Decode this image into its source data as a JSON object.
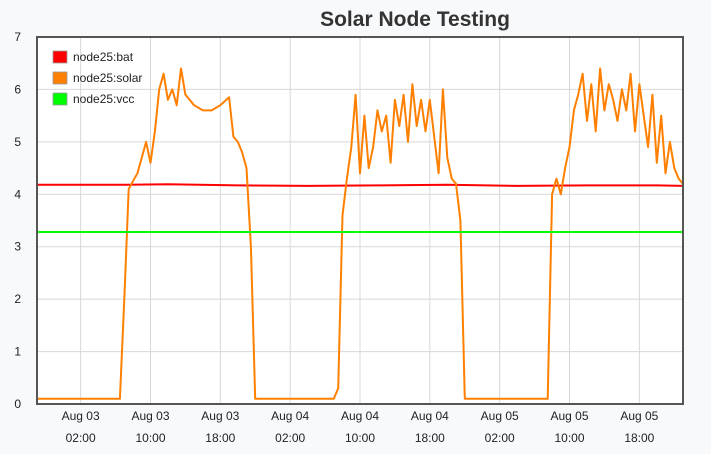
{
  "chart_data": {
    "type": "line",
    "title": "Solar Node Testing",
    "xlabel": "",
    "ylabel": "",
    "ylim": [
      0,
      7
    ],
    "yticks": [
      0,
      1,
      2,
      3,
      4,
      5,
      6,
      7
    ],
    "xlim": [
      "2023-08-02T21:00",
      "2023-08-05T23:00"
    ],
    "xticks": [
      {
        "t": "2023-08-03T02:00",
        "date": "Aug 03",
        "time": "02:00"
      },
      {
        "t": "2023-08-03T10:00",
        "date": "Aug 03",
        "time": "10:00"
      },
      {
        "t": "2023-08-03T18:00",
        "date": "Aug 03",
        "time": "18:00"
      },
      {
        "t": "2023-08-04T02:00",
        "date": "Aug 04",
        "time": "02:00"
      },
      {
        "t": "2023-08-04T10:00",
        "date": "Aug 04",
        "time": "10:00"
      },
      {
        "t": "2023-08-04T18:00",
        "date": "Aug 04",
        "time": "18:00"
      },
      {
        "t": "2023-08-05T02:00",
        "date": "Aug 05",
        "time": "02:00"
      },
      {
        "t": "2023-08-05T10:00",
        "date": "Aug 05",
        "time": "10:00"
      },
      {
        "t": "2023-08-05T18:00",
        "date": "Aug 05",
        "time": "18:00"
      }
    ],
    "grid": true,
    "legend_position": "top-left",
    "series": [
      {
        "name": "node25:bat",
        "color": "#ff0000",
        "x": [
          "2023-08-02T21:00",
          "2023-08-03T07:00",
          "2023-08-03T12:00",
          "2023-08-03T20:00",
          "2023-08-04T04:00",
          "2023-08-04T12:00",
          "2023-08-04T20:00",
          "2023-08-05T04:00",
          "2023-08-05T12:00",
          "2023-08-05T20:00",
          "2023-08-05T23:00"
        ],
        "y": [
          4.18,
          4.18,
          4.19,
          4.17,
          4.16,
          4.17,
          4.18,
          4.16,
          4.17,
          4.17,
          4.16
        ]
      },
      {
        "name": "node25:solar",
        "color": "#ff8000",
        "x": [
          "2023-08-02T21:00",
          "2023-08-03T03:00",
          "2023-08-03T06:30",
          "2023-08-03T07:00",
          "2023-08-03T07:30",
          "2023-08-03T08:00",
          "2023-08-03T08:30",
          "2023-08-03T09:00",
          "2023-08-03T09:30",
          "2023-08-03T10:00",
          "2023-08-03T10:30",
          "2023-08-03T11:00",
          "2023-08-03T11:30",
          "2023-08-03T12:00",
          "2023-08-03T12:30",
          "2023-08-03T13:00",
          "2023-08-03T13:30",
          "2023-08-03T14:00",
          "2023-08-03T15:00",
          "2023-08-03T16:00",
          "2023-08-03T17:00",
          "2023-08-03T18:00",
          "2023-08-03T19:00",
          "2023-08-03T19:30",
          "2023-08-03T20:00",
          "2023-08-03T20:30",
          "2023-08-03T21:00",
          "2023-08-03T21:30",
          "2023-08-03T22:00",
          "2023-08-03T23:00",
          "2023-08-04T03:00",
          "2023-08-04T07:00",
          "2023-08-04T07:30",
          "2023-08-04T08:00",
          "2023-08-04T08:30",
          "2023-08-04T09:00",
          "2023-08-04T09:30",
          "2023-08-04T10:00",
          "2023-08-04T10:30",
          "2023-08-04T11:00",
          "2023-08-04T11:30",
          "2023-08-04T12:00",
          "2023-08-04T12:30",
          "2023-08-04T13:00",
          "2023-08-04T13:30",
          "2023-08-04T14:00",
          "2023-08-04T14:30",
          "2023-08-04T15:00",
          "2023-08-04T15:30",
          "2023-08-04T16:00",
          "2023-08-04T16:30",
          "2023-08-04T17:00",
          "2023-08-04T17:30",
          "2023-08-04T18:00",
          "2023-08-04T18:30",
          "2023-08-04T19:00",
          "2023-08-04T19:30",
          "2023-08-04T20:00",
          "2023-08-04T20:30",
          "2023-08-04T21:00",
          "2023-08-04T21:30",
          "2023-08-04T22:00",
          "2023-08-04T23:00",
          "2023-08-05T04:00",
          "2023-08-05T07:00",
          "2023-08-05T07:30",
          "2023-08-05T08:00",
          "2023-08-05T08:30",
          "2023-08-05T09:00",
          "2023-08-05T09:30",
          "2023-08-05T10:00",
          "2023-08-05T10:30",
          "2023-08-05T11:00",
          "2023-08-05T11:30",
          "2023-08-05T12:00",
          "2023-08-05T12:30",
          "2023-08-05T13:00",
          "2023-08-05T13:30",
          "2023-08-05T14:00",
          "2023-08-05T14:30",
          "2023-08-05T15:00",
          "2023-08-05T15:30",
          "2023-08-05T16:00",
          "2023-08-05T16:30",
          "2023-08-05T17:00",
          "2023-08-05T17:30",
          "2023-08-05T18:00",
          "2023-08-05T18:30",
          "2023-08-05T19:00",
          "2023-08-05T19:30",
          "2023-08-05T20:00",
          "2023-08-05T20:30",
          "2023-08-05T21:00",
          "2023-08-05T21:30",
          "2023-08-05T22:00",
          "2023-08-05T22:30",
          "2023-08-05T23:00"
        ],
        "y": [
          0.1,
          0.1,
          0.1,
          2.0,
          4.1,
          4.25,
          4.4,
          4.7,
          5.0,
          4.6,
          5.2,
          6.0,
          6.3,
          5.8,
          6.0,
          5.7,
          6.4,
          5.9,
          5.7,
          5.6,
          5.6,
          5.7,
          5.85,
          5.1,
          5.0,
          4.8,
          4.5,
          3.0,
          0.1,
          0.1,
          0.1,
          0.1,
          0.3,
          3.6,
          4.3,
          4.9,
          5.9,
          4.4,
          5.5,
          4.5,
          4.9,
          5.6,
          5.2,
          5.5,
          4.6,
          5.8,
          5.3,
          5.9,
          5.0,
          6.1,
          5.3,
          5.8,
          5.2,
          5.8,
          5.1,
          4.4,
          6.0,
          4.7,
          4.3,
          4.2,
          3.5,
          0.1,
          0.1,
          0.1,
          0.1,
          0.1,
          4.0,
          4.3,
          4.0,
          4.5,
          4.9,
          5.6,
          5.9,
          6.3,
          5.4,
          6.1,
          5.2,
          6.4,
          5.6,
          6.1,
          5.8,
          5.4,
          6.0,
          5.6,
          6.3,
          5.2,
          6.1,
          5.5,
          4.9,
          5.9,
          4.6,
          5.5,
          4.4,
          5.0,
          4.5,
          4.3,
          4.2
        ]
      },
      {
        "name": "node25:vcc",
        "color": "#00ff00",
        "x": [
          "2023-08-02T21:00",
          "2023-08-03T12:00",
          "2023-08-04T12:00",
          "2023-08-05T12:00",
          "2023-08-05T23:00"
        ],
        "y": [
          3.28,
          3.28,
          3.28,
          3.28,
          3.28
        ]
      }
    ]
  }
}
